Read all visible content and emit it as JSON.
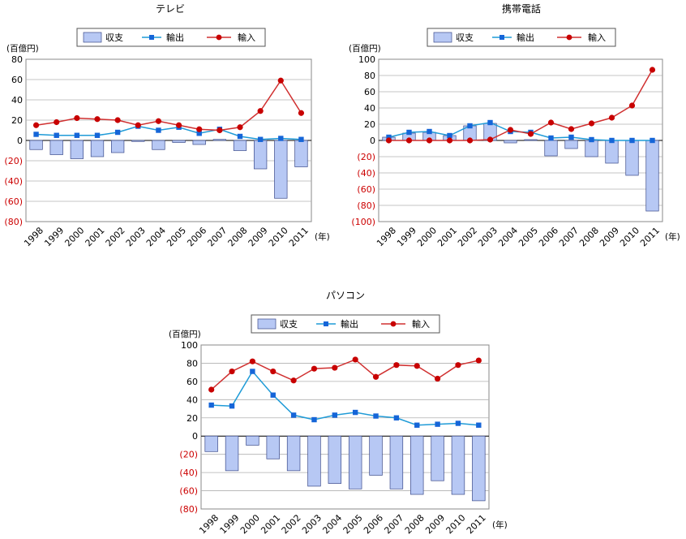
{
  "legend_labels": {
    "balance": "収支",
    "export": "輸出",
    "import": "輸入"
  },
  "unit_label": "(百億円)",
  "year_label": "(年)",
  "colors": {
    "bar_fill": "#b7c8f4",
    "bar_stroke": "#3b4a8a",
    "export_line": "#1f9bd7",
    "export_marker": "#1565d8",
    "import_line": "#d03030",
    "import_marker": "#c80000",
    "negative_tick": "#cc0000",
    "grid": "#b0b0b0"
  },
  "chart_data": [
    {
      "type": "bar+line",
      "title": "テレビ",
      "categories": [
        "1998",
        "1999",
        "2000",
        "2001",
        "2002",
        "2003",
        "2004",
        "2005",
        "2006",
        "2007",
        "2008",
        "2009",
        "2010",
        "2011"
      ],
      "ylim": [
        -80,
        80
      ],
      "yticks": [
        80,
        60,
        40,
        20,
        0,
        -20,
        -40,
        -60,
        -80
      ],
      "ytick_labels": [
        "80",
        "60",
        "40",
        "20",
        "0",
        "(20)",
        "(40)",
        "(60)",
        "(80)"
      ],
      "grid": true,
      "legend_position": "top",
      "series": [
        {
          "name": "収支",
          "type": "bar",
          "values": [
            -9,
            -14,
            -18,
            -16,
            -12,
            -1,
            -9,
            -2,
            -4,
            1,
            -10,
            -28,
            -57,
            -26
          ]
        },
        {
          "name": "輸出",
          "type": "line",
          "values": [
            6,
            5,
            5,
            5,
            8,
            14,
            10,
            13,
            7,
            11,
            4,
            1,
            2,
            1
          ]
        },
        {
          "name": "輸入",
          "type": "line",
          "values": [
            15,
            18,
            22,
            21,
            20,
            15,
            19,
            15,
            11,
            10,
            13,
            29,
            59,
            27
          ]
        }
      ]
    },
    {
      "type": "bar+line",
      "title": "携帯電話",
      "categories": [
        "1998",
        "1999",
        "2000",
        "2001",
        "2002",
        "2003",
        "2004",
        "2005",
        "2006",
        "2007",
        "2008",
        "2009",
        "2010",
        "2011"
      ],
      "ylim": [
        -100,
        100
      ],
      "yticks": [
        100,
        80,
        60,
        40,
        20,
        0,
        -20,
        -40,
        -60,
        -80,
        -100
      ],
      "ytick_labels": [
        "100",
        "80",
        "60",
        "40",
        "20",
        "0",
        "(20)",
        "(40)",
        "(60)",
        "(80)",
        "(100)"
      ],
      "grid": true,
      "legend_position": "top",
      "series": [
        {
          "name": "収支",
          "type": "bar",
          "values": [
            4,
            9,
            10,
            6,
            18,
            21,
            -3,
            1,
            -19,
            -10,
            -20,
            -28,
            -43,
            -87
          ]
        },
        {
          "name": "輸出",
          "type": "line",
          "values": [
            4,
            10,
            11,
            6,
            18,
            22,
            11,
            10,
            3,
            4,
            1,
            0,
            0,
            0
          ]
        },
        {
          "name": "輸入",
          "type": "line",
          "values": [
            0,
            0,
            0,
            0,
            0,
            1,
            13,
            8,
            22,
            14,
            21,
            28,
            43,
            87
          ]
        }
      ]
    },
    {
      "type": "bar+line",
      "title": "パソコン",
      "categories": [
        "1998",
        "1999",
        "2000",
        "2001",
        "2002",
        "2003",
        "2004",
        "2005",
        "2006",
        "2007",
        "2008",
        "2009",
        "2010",
        "2011"
      ],
      "ylim": [
        -80,
        100
      ],
      "yticks": [
        100,
        80,
        60,
        40,
        20,
        0,
        -20,
        -40,
        -60,
        -80
      ],
      "ytick_labels": [
        "100",
        "80",
        "60",
        "40",
        "20",
        "0",
        "(20)",
        "(40)",
        "(60)",
        "(80)"
      ],
      "grid": true,
      "legend_position": "top",
      "series": [
        {
          "name": "収支",
          "type": "bar",
          "values": [
            -17,
            -38,
            -10,
            -25,
            -38,
            -55,
            -52,
            -58,
            -43,
            -58,
            -64,
            -49,
            -64,
            -71
          ]
        },
        {
          "name": "輸出",
          "type": "line",
          "values": [
            34,
            33,
            71,
            45,
            23,
            18,
            23,
            26,
            22,
            20,
            12,
            13,
            14,
            12
          ]
        },
        {
          "name": "輸入",
          "type": "line",
          "values": [
            51,
            71,
            82,
            71,
            61,
            74,
            75,
            84,
            65,
            78,
            77,
            63,
            78,
            83
          ]
        }
      ]
    }
  ]
}
